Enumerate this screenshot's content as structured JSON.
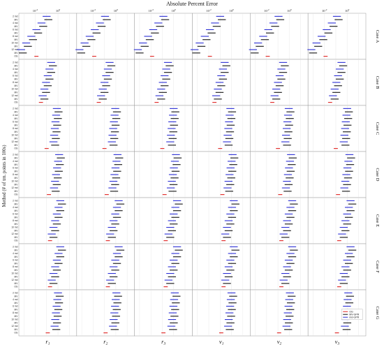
{
  "chart_data": {
    "type": "interval-grid",
    "title": "Absolute Percent Error",
    "ylabel": "Method (# of trn. points in 100s)",
    "x_scale": "log",
    "top_ticks": [
      {
        "exp": "-2",
        "value": 0.01
      },
      {
        "exp": "0",
        "value": 1
      }
    ],
    "categories": [
      "2 md",
      "MV",
      "4 md",
      "MV",
      "6 md",
      "MV",
      "8 md",
      "MV",
      "10 md",
      "MV",
      "12 md",
      "MV",
      "OG"
    ],
    "columns": [
      {
        "base": "r",
        "sub": "1"
      },
      {
        "base": "r",
        "sub": "2"
      },
      {
        "base": "r",
        "sub": "3"
      },
      {
        "base": "v",
        "sub": "1"
      },
      {
        "base": "v",
        "sub": "2"
      },
      {
        "base": "v",
        "sub": "3"
      }
    ],
    "rows": [
      {
        "label": "Case A",
        "offset": -1.0,
        "step": -0.15
      },
      {
        "label": "Case B",
        "offset": -0.6,
        "step": -0.05
      },
      {
        "label": "Case C",
        "offset": -0.1,
        "step": -0.02
      },
      {
        "label": "Case D",
        "offset": 0.1,
        "step": -0.03
      },
      {
        "label": "Case E",
        "offset": 0.2,
        "step": -0.05
      },
      {
        "label": "Case F",
        "offset": 0.2,
        "step": -0.05
      },
      {
        "label": "Case G",
        "offset": 0.0,
        "step": -0.02
      }
    ],
    "series": [
      {
        "name": "OG",
        "color": "#e0211f"
      },
      {
        "name": "MV-GPR",
        "color": "#111111"
      },
      {
        "name": "md-GPR",
        "color": "#2b2fd6"
      }
    ],
    "legend": {
      "placement": "panel Case G / column v3, lower-right"
    }
  }
}
